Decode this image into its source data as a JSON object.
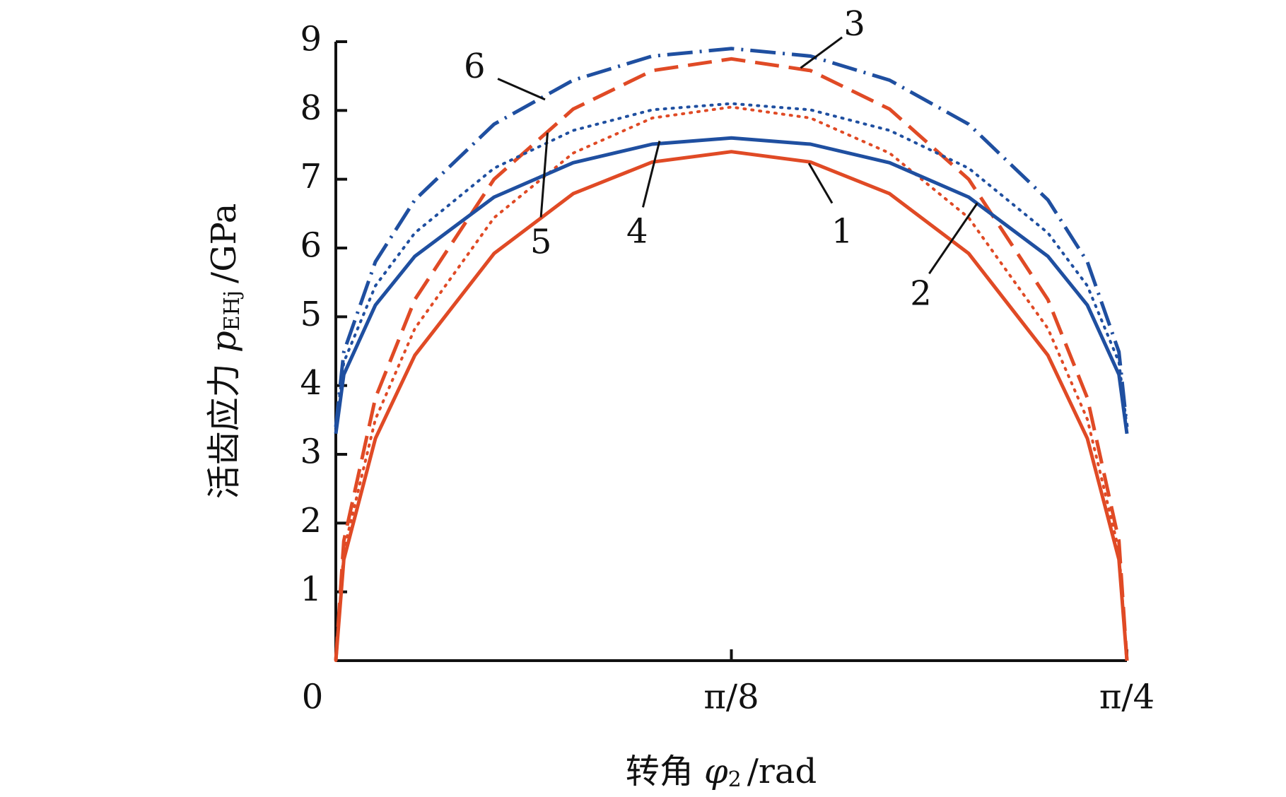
{
  "chart_data": {
    "type": "line",
    "x_label": {
      "text": "转角",
      "symbol": "φ",
      "subscript": "2",
      "unit": "/rad"
    },
    "y_label": {
      "text": "活齿应力",
      "symbol": "p",
      "subscript": "EHj",
      "unit": "/GPa"
    },
    "x": [
      0,
      0.0079,
      0.0393,
      0.0785,
      0.1571,
      0.2356,
      0.3142,
      0.3927,
      0.4712,
      0.5498,
      0.6283,
      0.7069,
      0.7461,
      0.7775,
      0.7854
    ],
    "series": [
      {
        "name": "1",
        "color": "#e04a25",
        "dash": "solid",
        "values": [
          0,
          1.47,
          3.23,
          4.44,
          5.92,
          6.79,
          7.25,
          7.4,
          7.25,
          6.79,
          5.92,
          4.44,
          3.23,
          1.47,
          0
        ]
      },
      {
        "name": "2",
        "color": "#e04a25",
        "dash": "dotted",
        "values": [
          0,
          1.6,
          3.51,
          4.83,
          6.44,
          7.38,
          7.89,
          8.05,
          7.89,
          7.38,
          6.44,
          4.83,
          3.51,
          1.6,
          0
        ]
      },
      {
        "name": "3",
        "color": "#e04a25",
        "dash": "dashed",
        "values": [
          0,
          1.74,
          3.82,
          5.25,
          7.0,
          8.02,
          8.58,
          8.75,
          8.58,
          8.02,
          7.0,
          5.25,
          3.82,
          1.74,
          0
        ]
      },
      {
        "name": "4",
        "color": "#1f4fa0",
        "dash": "solid",
        "values": [
          3.3,
          4.16,
          5.17,
          5.88,
          6.74,
          7.24,
          7.51,
          7.6,
          7.51,
          7.24,
          6.74,
          5.88,
          5.17,
          4.16,
          3.3
        ]
      },
      {
        "name": "5",
        "color": "#1f4fa0",
        "dash": "dotted",
        "values": [
          3.4,
          4.34,
          5.45,
          6.22,
          7.16,
          7.71,
          8.01,
          8.1,
          8.01,
          7.71,
          7.16,
          6.22,
          5.45,
          4.34,
          3.4
        ]
      },
      {
        "name": "6",
        "color": "#1f4fa0",
        "dash": "dashdot",
        "values": [
          3.4,
          4.49,
          5.8,
          6.7,
          7.8,
          8.44,
          8.79,
          8.9,
          8.79,
          8.44,
          7.8,
          6.7,
          5.8,
          4.49,
          3.4
        ]
      }
    ],
    "xlim": [
      0,
      0.7854
    ],
    "xticks": [
      0,
      {
        "value": 0.3927,
        "label": "π/8"
      },
      {
        "value": 0.7854,
        "label": "π/4"
      }
    ],
    "ylim": [
      0,
      9
    ],
    "yticks": [
      1,
      2,
      3,
      4,
      5,
      6,
      7,
      8,
      9
    ]
  }
}
